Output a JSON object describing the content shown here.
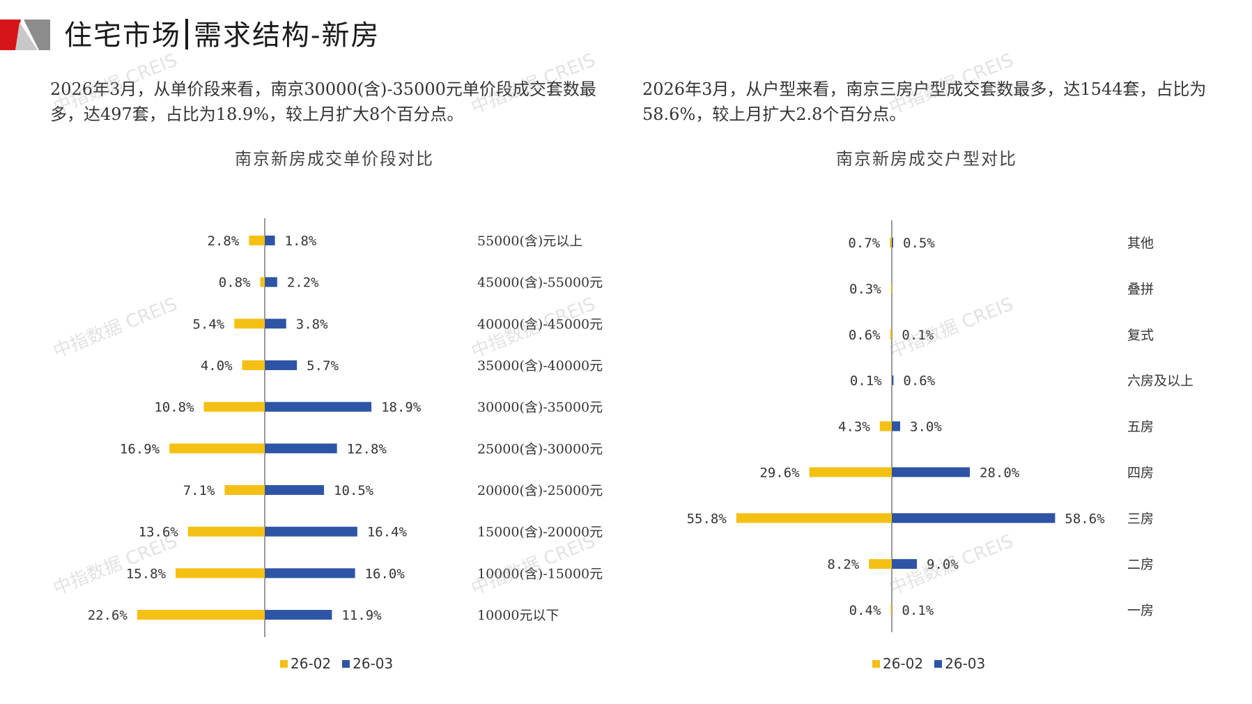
{
  "header": {
    "title_part1": "住宅市场",
    "title_part2": "需求结构-新房"
  },
  "summary_left": "2026年3月，从单价段来看，南京30000(含)-35000元单价段成交套数最多，达497套，占比为18.9%，较上月扩大8个百分点。",
  "summary_right": "2026年3月，从户型来看，南京三房户型成交套数最多，达1544套，占比为58.6%，较上月扩大2.8个百分点。",
  "watermark": "中指数据 CREIS",
  "colors": {
    "prev": "#F5C014",
    "curr": "#2E54A5",
    "logo_red": "#D7141A",
    "logo_gray": "#8C8C8C"
  },
  "legend": {
    "prev_label": "26-02",
    "curr_label": "26-03"
  },
  "chart_data": [
    {
      "type": "bar",
      "orientation": "horizontal-butterfly",
      "title": "南京新房成交单价段对比",
      "categories": [
        "55000(含)元以上",
        "45000(含)-55000元",
        "40000(含)-45000元",
        "35000(含)-40000元",
        "30000(含)-35000元",
        "25000(含)-30000元",
        "20000(含)-25000元",
        "15000(含)-20000元",
        "10000(含)-15000元",
        "10000元以下"
      ],
      "series": [
        {
          "name": "26-02",
          "values": [
            2.8,
            0.8,
            5.4,
            4.0,
            10.8,
            16.9,
            7.1,
            13.6,
            15.8,
            22.6
          ],
          "labels": [
            "2.8%",
            "0.8%",
            "5.4%",
            "4.0%",
            "10.8%",
            "16.9%",
            "7.1%",
            "13.6%",
            "15.8%",
            "22.6%"
          ]
        },
        {
          "name": "26-03",
          "values": [
            1.8,
            2.2,
            3.8,
            5.7,
            18.9,
            12.8,
            10.5,
            16.4,
            16.0,
            11.9
          ],
          "labels": [
            "1.8%",
            "2.2%",
            "3.8%",
            "5.7%",
            "18.9%",
            "12.8%",
            "10.5%",
            "16.4%",
            "16.0%",
            "11.9%"
          ]
        }
      ],
      "unit": "%"
    },
    {
      "type": "bar",
      "orientation": "horizontal-butterfly",
      "title": "南京新房成交户型对比",
      "categories": [
        "其他",
        "叠拼",
        "复式",
        "六房及以上",
        "五房",
        "四房",
        "三房",
        "二房",
        "一房"
      ],
      "series": [
        {
          "name": "26-02",
          "values": [
            0.7,
            0.3,
            0.6,
            0.1,
            4.3,
            29.6,
            55.8,
            8.2,
            0.4
          ],
          "labels": [
            "0.7%",
            "0.3%",
            "0.6%",
            "0.1%",
            "4.3%",
            "29.6%",
            "55.8%",
            "8.2%",
            "0.4%"
          ]
        },
        {
          "name": "26-03",
          "values": [
            0.5,
            0.0,
            0.1,
            0.6,
            3.0,
            28.0,
            58.6,
            9.0,
            0.1
          ],
          "labels": [
            "0.5%",
            "",
            "0.1%",
            "0.6%",
            "3.0%",
            "28.0%",
            "58.6%",
            "9.0%",
            "0.1%"
          ]
        }
      ],
      "unit": "%"
    }
  ]
}
